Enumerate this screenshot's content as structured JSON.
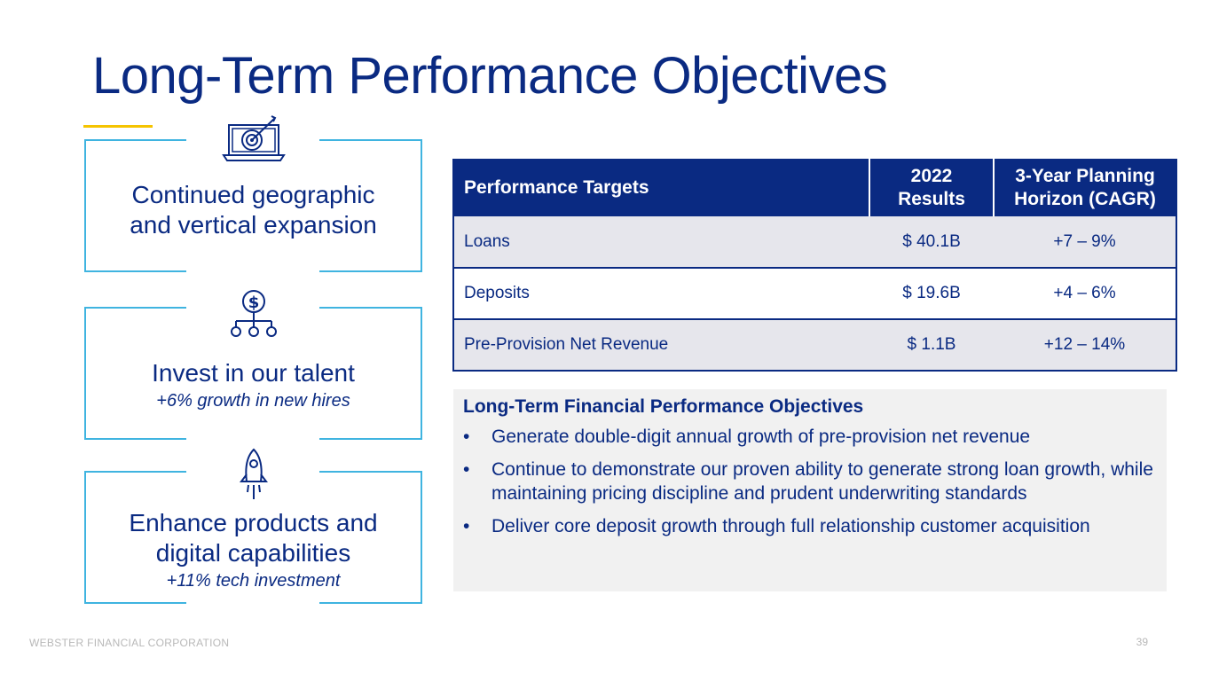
{
  "slide": {
    "title": "Long-Term Performance Objectives",
    "footer": "WEBSTER FINANCIAL CORPORATION",
    "page_number": "39"
  },
  "cards": [
    {
      "icon": "laptop-target-icon",
      "main": "Continued geographic\nand vertical expansion",
      "sub": ""
    },
    {
      "icon": "dollar-network-icon",
      "main": "Invest in our talent",
      "sub": "+6% growth in new hires"
    },
    {
      "icon": "rocket-icon",
      "main": "Enhance products and\ndigital capabilities",
      "sub": "+11% tech investment"
    }
  ],
  "table": {
    "headers": [
      "Performance Targets",
      "2022\nResults",
      "3-Year Planning\nHorizon (CAGR)"
    ],
    "rows": [
      [
        "Loans",
        "$ 40.1B",
        "+7 – 9%"
      ],
      [
        "Deposits",
        "$ 19.6B",
        "+4 – 6%"
      ],
      [
        "Pre-Provision Net Revenue",
        "$ 1.1B",
        "+12 – 14%"
      ]
    ]
  },
  "objectives": {
    "heading": "Long-Term Financial Performance Objectives",
    "bullet": "•",
    "items": [
      "Generate double-digit annual growth of pre-provision net revenue",
      "Continue to demonstrate our proven ability to generate strong loan growth, while maintaining pricing discipline and prudent underwriting standards",
      "Deliver core deposit growth through full relationship customer acquisition"
    ]
  },
  "colors": {
    "navy": "#0a2a82",
    "accent_yellow": "#f5c400",
    "card_border": "#3fb4e0",
    "row_alt": "#e6e6ec",
    "panel_bg": "#f1f1f1"
  }
}
